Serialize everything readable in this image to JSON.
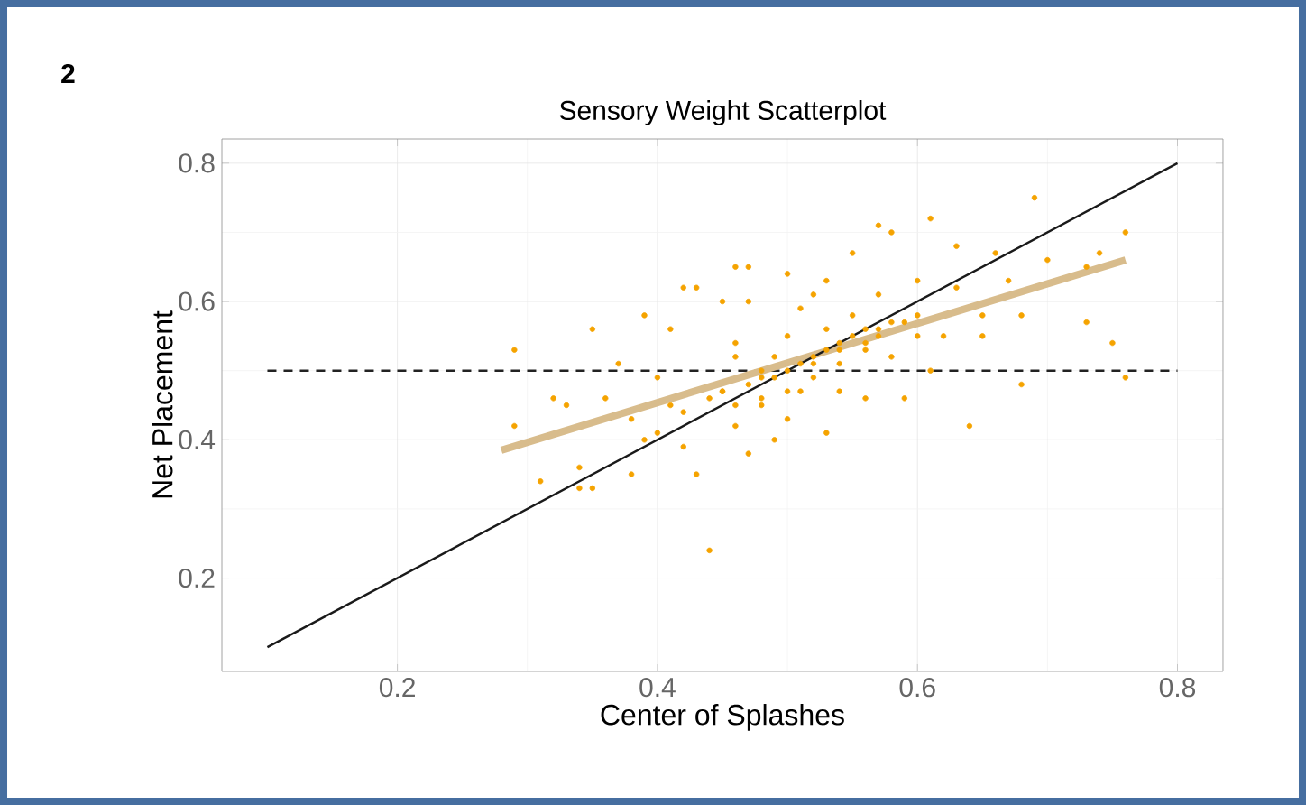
{
  "chart_data": {
    "type": "scatter",
    "title": "Sensory Weight Scatterplot",
    "xlabel": "Center of Splashes",
    "ylabel": "Net Placement",
    "annotations": [
      "2"
    ],
    "xlim": [
      0.065,
      0.835
    ],
    "ylim": [
      0.065,
      0.835
    ],
    "xticks": [
      0.2,
      0.4,
      0.6,
      0.8
    ],
    "yticks": [
      0.2,
      0.4,
      0.6,
      0.8
    ],
    "grid": true,
    "ref_lines": [
      {
        "axis": "y",
        "value": 0.5,
        "color": "#222222",
        "line_style": "dashed"
      }
    ],
    "series": [
      {
        "marker": "circle",
        "color": "#f5a300",
        "x": [
          0.29,
          0.29,
          0.31,
          0.35,
          0.32,
          0.33,
          0.34,
          0.35,
          0.34,
          0.36,
          0.37,
          0.38,
          0.38,
          0.39,
          0.39,
          0.4,
          0.41,
          0.41,
          0.42,
          0.42,
          0.43,
          0.43,
          0.44,
          0.45,
          0.45,
          0.46,
          0.46,
          0.46,
          0.47,
          0.47,
          0.47,
          0.48,
          0.48,
          0.49,
          0.49,
          0.5,
          0.5,
          0.5,
          0.51,
          0.51,
          0.52,
          0.52,
          0.53,
          0.53,
          0.53,
          0.54,
          0.54,
          0.55,
          0.55,
          0.56,
          0.56,
          0.57,
          0.57,
          0.57,
          0.58,
          0.58,
          0.59,
          0.59,
          0.6,
          0.6,
          0.61,
          0.61,
          0.62,
          0.63,
          0.63,
          0.64,
          0.65,
          0.65,
          0.66,
          0.67,
          0.68,
          0.68,
          0.69,
          0.7,
          0.73,
          0.73,
          0.74,
          0.75,
          0.76,
          0.76,
          0.44,
          0.45,
          0.46,
          0.47,
          0.48,
          0.49,
          0.5,
          0.51,
          0.52,
          0.53,
          0.54,
          0.55,
          0.56,
          0.57,
          0.46,
          0.48,
          0.5,
          0.52,
          0.54,
          0.56,
          0.58,
          0.6,
          0.42,
          0.4
        ],
        "values": [
          0.53,
          0.42,
          0.34,
          0.56,
          0.46,
          0.45,
          0.33,
          0.33,
          0.36,
          0.46,
          0.51,
          0.43,
          0.35,
          0.4,
          0.58,
          0.49,
          0.56,
          0.45,
          0.62,
          0.39,
          0.35,
          0.62,
          0.24,
          0.6,
          0.47,
          0.54,
          0.42,
          0.65,
          0.38,
          0.6,
          0.65,
          0.49,
          0.45,
          0.4,
          0.52,
          0.43,
          0.64,
          0.55,
          0.59,
          0.47,
          0.51,
          0.61,
          0.41,
          0.56,
          0.63,
          0.53,
          0.47,
          0.58,
          0.67,
          0.54,
          0.46,
          0.61,
          0.71,
          0.56,
          0.52,
          0.7,
          0.57,
          0.46,
          0.63,
          0.55,
          0.5,
          0.72,
          0.55,
          0.68,
          0.62,
          0.42,
          0.58,
          0.55,
          0.67,
          0.63,
          0.48,
          0.58,
          0.75,
          0.66,
          0.65,
          0.57,
          0.67,
          0.54,
          0.49,
          0.7,
          0.46,
          0.47,
          0.45,
          0.48,
          0.5,
          0.49,
          0.5,
          0.51,
          0.52,
          0.53,
          0.54,
          0.55,
          0.56,
          0.55,
          0.52,
          0.46,
          0.47,
          0.49,
          0.51,
          0.53,
          0.57,
          0.58,
          0.44,
          0.41
        ]
      },
      {
        "type": "line",
        "marker": "none",
        "color": "#d8bc8c",
        "x": [
          0.28,
          0.76
        ],
        "values": [
          0.385,
          0.66
        ]
      },
      {
        "type": "line",
        "marker": "none",
        "color": "#1a1a1a",
        "x": [
          0.1,
          0.8
        ],
        "values": [
          0.1,
          0.8
        ]
      }
    ]
  }
}
